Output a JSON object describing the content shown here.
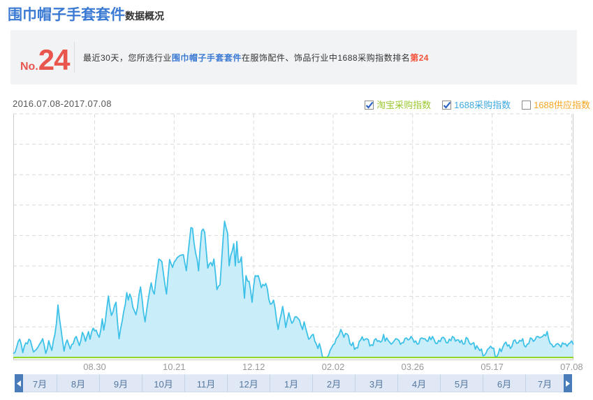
{
  "page": {
    "title": "围巾帽子手套套件",
    "title_suffix": "数据概况"
  },
  "rank_box": {
    "rank_prefix": "No.",
    "rank_number": "24",
    "desc_part1": "最近30天，您所选行业",
    "desc_keyword": "围巾帽子手套套件",
    "desc_part2": "在服饰配件、饰品行业中1688采购指数排名",
    "desc_rank": "第24"
  },
  "chart_header": {
    "date_range": "2016.07.08-2017.07.08",
    "legend": [
      {
        "label": "淘宝采购指数",
        "checked": true,
        "color": "#9cc832"
      },
      {
        "label": "1688采购指数",
        "checked": true,
        "color": "#3fa9e0"
      },
      {
        "label": "1688供应指数",
        "checked": false,
        "color": "#f5a623"
      }
    ]
  },
  "chart_data": {
    "type": "area",
    "title": "",
    "x_start_date": "2016.07.08",
    "x_end_date": "2017.07.08",
    "x_tick_labels": [
      "08.30",
      "10.21",
      "12.12",
      "02.02",
      "03.26",
      "05.17",
      "07.08"
    ],
    "x_tick_days": [
      53,
      105,
      157,
      209,
      261,
      313,
      365
    ],
    "days_total": 366,
    "ylim": [
      0,
      100
    ],
    "y_axis_labels": "none",
    "grid": "dashed",
    "legend_position": "top-right",
    "series": [
      {
        "name": "淘宝采购指数",
        "type": "line",
        "color": "#8dd41c",
        "visible": true,
        "values_constant": 0.2
      },
      {
        "name": "1688采购指数",
        "type": "area",
        "color": "#3ec1e8",
        "fill_color": "#c9eefa",
        "visible": true,
        "values": [
          1.9,
          2.4,
          4.5,
          6.8,
          7.7,
          5.6,
          2.2,
          4.8,
          6.2,
          5.8,
          7.7,
          7.1,
          4.6,
          2.5,
          3.0,
          3.6,
          4.5,
          5.7,
          6.6,
          7.9,
          5.2,
          1.9,
          3.7,
          7.1,
          4.9,
          3.1,
          7.0,
          9.7,
          14.2,
          21.7,
          16.1,
          11.7,
          7.2,
          2.8,
          5.8,
          7.4,
          5.6,
          3.7,
          5.5,
          5.9,
          8.0,
          8.8,
          6.9,
          5.1,
          7.2,
          10.5,
          9.2,
          6.8,
          9.0,
          10.8,
          7.7,
          10.5,
          12.2,
          11.1,
          11.4,
          9.6,
          8.5,
          11.5,
          16.0,
          11.4,
          15.1,
          20.4,
          25.4,
          20.7,
          17.4,
          18.9,
          21.5,
          22.8,
          14.5,
          7.9,
          12.0,
          15.1,
          19.0,
          21.8,
          26.8,
          23.7,
          26.2,
          24.6,
          20.8,
          19.3,
          17.7,
          20.6,
          25.9,
          29.1,
          24.3,
          18.6,
          14.8,
          19.4,
          23.7,
          27.6,
          30.8,
          27.5,
          26.2,
          31.7,
          35.9,
          40.5,
          40.1,
          39.4,
          34.6,
          29.9,
          26.2,
          33.7,
          40.3,
          38.6,
          37.1,
          39.2,
          40.0,
          41.1,
          41.6,
          42.0,
          42.2,
          42.3,
          39.0,
          35.7,
          42.2,
          47.8,
          53.4,
          53.1,
          47.1,
          43.1,
          40.4,
          35.7,
          44.9,
          52.0,
          52.8,
          51.4,
          43.9,
          36.8,
          38.5,
          39.1,
          37.7,
          40.5,
          34.9,
          28.0,
          29.4,
          30.0,
          39.4,
          48.8,
          56.0,
          53.3,
          51.1,
          37.7,
          42.0,
          43.8,
          46.8,
          37.7,
          47.7,
          39.1,
          39.3,
          41.4,
          32.4,
          24.5,
          33.7,
          31.5,
          31.4,
          27.7,
          22.8,
          29.3,
          33.7,
          33.5,
          33.7,
          31.6,
          28.8,
          30.1,
          29.6,
          30.5,
          28.3,
          23.9,
          22.0,
          22.3,
          23.7,
          20.5,
          15.5,
          11.7,
          15.2,
          17.8,
          21.1,
          17.3,
          12.5,
          15.6,
          18.5,
          16.1,
          14.2,
          15.0,
          16.8,
          16.9,
          16.2,
          15.5,
          13.2,
          11.7,
          14.8,
          12.3,
          10.1,
          7.7,
          8.2,
          9.3,
          9.7,
          6.9,
          5.7,
          3.9,
          5.9,
          3.7,
          0.5,
          0.3,
          0.3,
          0.3,
          1.1,
          3.1,
          4.3,
          5.4,
          5.8,
          7.9,
          8.6,
          9.7,
          11.7,
          10.3,
          8.5,
          10.0,
          9.9,
          9.1,
          5.9,
          5.1,
          6.4,
          3.5,
          4.2,
          4.1,
          6.7,
          7.4,
          8.7,
          7.2,
          7.7,
          7.9,
          7.5,
          4.9,
          5.4,
          5.1,
          7.4,
          7.9,
          6.8,
          7.1,
          6.5,
          7.1,
          9.6,
          6.9,
          8.2,
          7.2,
          6.4,
          5.7,
          6.2,
          7.1,
          7.9,
          7.7,
          7.2,
          5.6,
          6.2,
          6.3,
          8.0,
          8.2,
          7.4,
          7.7,
          8.8,
          7.9,
          6.4,
          7.0,
          5.7,
          5.8,
          7.9,
          8.2,
          7.9,
          7.9,
          7.1,
          6.8,
          8.7,
          7.5,
          8.8,
          7.6,
          6.0,
          5.9,
          7.2,
          6.7,
          8.2,
          8.5,
          7.9,
          6.3,
          6.2,
          7.7,
          7.1,
          8.8,
          8.4,
          6.9,
          7.4,
          7.4,
          6.3,
          7.3,
          5.7,
          5.8,
          8.4,
          7.9,
          6.2,
          5.5,
          5.9,
          6.3,
          3.6,
          5.0,
          3.9,
          3.0,
          3.7,
          0.9,
          1.1,
          2.0,
          3.5,
          4.0,
          4.8,
          4.0,
          4.0,
          0.6,
          0.5,
          1.7,
          3.9,
          2.6,
          4.5,
          5.8,
          6.5,
          4.9,
          5.4,
          3.9,
          4.8,
          7.0,
          7.4,
          6.0,
          6.2,
          7.2,
          6.9,
          7.9,
          5.1,
          4.5,
          5.7,
          5.9,
          8.2,
          7.9,
          6.8,
          7.4,
          8.7,
          8.8,
          8.3,
          8.5,
          8.8,
          9.6,
          9.1,
          10.8,
          7.7,
          5.9,
          5.6,
          4.5,
          4.8,
          5.7,
          5.9,
          5.3,
          4.5,
          6.2,
          5.7,
          5.9,
          4.8,
          5.8,
          6.2,
          7.0,
          5.7
        ]
      },
      {
        "name": "1688供应指数",
        "type": "line",
        "color": "#f5a623",
        "visible": false,
        "values": []
      }
    ]
  },
  "month_bar": {
    "months": [
      "7月",
      "8月",
      "9月",
      "10月",
      "11月",
      "12月",
      "1月",
      "2月",
      "3月",
      "4月",
      "5月",
      "6月",
      "7月"
    ]
  },
  "colors": {
    "title_blue": "#3b7ad3",
    "rank_red": "#e8564e",
    "desc_rank_red": "#f4503a",
    "box_bg": "#f2f3f5",
    "legend_green": "#9cc832",
    "legend_blue": "#3fa9e0",
    "legend_orange": "#f5a623",
    "line_blue": "#3ec1e8",
    "area_fill": "#c9eefa",
    "line_green": "#8dd41c",
    "grid_gray": "#d9d9d9",
    "border_gray": "#cccccc",
    "month_text": "#56779f",
    "month_bg": "#dfe8f4",
    "arrow_bg": "#4b7cba"
  }
}
